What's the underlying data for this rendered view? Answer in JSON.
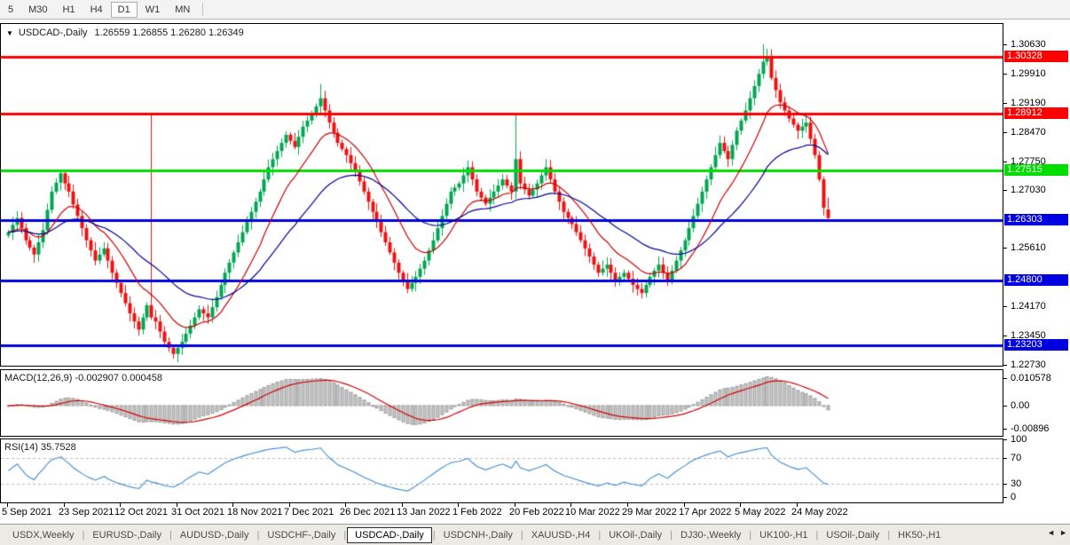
{
  "toolbar": {
    "timeframes": [
      "5",
      "M30",
      "H1",
      "H4",
      "D1",
      "W1",
      "MN"
    ],
    "active": "D1"
  },
  "chart": {
    "title": {
      "marker": "▼",
      "name": "USDCAD-,Daily",
      "ohlc": "1.26559 1.26855 1.26280 1.26349"
    }
  },
  "macd": {
    "label": "MACD(12,26,9)",
    "values": "-0.002907 0.000458"
  },
  "rsi": {
    "label": "RSI(14)",
    "value": "35.7528"
  },
  "tabs": {
    "items": [
      "USDX,Weekly",
      "EURUSD-,Daily",
      "AUDUSD-,Daily",
      "USDCHF-,Daily",
      "USDCAD-,Daily",
      "USDCNH-,Daily",
      "XAUUSD-,H4",
      "UKOil-,Daily",
      "DJ30-,Weekly",
      "UK100-,H1",
      "USOil-,Daily",
      "HK50-,H1"
    ],
    "active_index": 4,
    "scroll_left": "◄",
    "scroll_right": "►"
  },
  "colors": {
    "up_candle": "#00a651",
    "down_candle": "#ee1111",
    "ma_fast": "#cc0000",
    "ma_slow": "#000099",
    "hist_fill": "#c9c9c9",
    "hist_border": "#9b9b9b",
    "macd_signal": "#d40000",
    "rsi_line": "#3d8bd4",
    "level_dash": "#b9b9b9",
    "line_red": "#fe0000",
    "line_green": "#00dd00",
    "line_blue": "#0000e0"
  },
  "chart_data": {
    "type": "candlestick",
    "symbol": "USDCAD",
    "timeframe": "Daily",
    "last_bar": {
      "open": 1.26559,
      "high": 1.26855,
      "low": 1.2628,
      "close": 1.26349
    },
    "price_range": [
      1.2271,
      1.3113
    ],
    "y_ticks": [
      "1.30630",
      "1.29910",
      "1.29190",
      "1.28470",
      "1.27750",
      "1.27030",
      "1.25610",
      "1.24170",
      "1.23450",
      "1.22730"
    ],
    "hlines": [
      {
        "price": 1.30328,
        "label": "1.30328",
        "color": "#fe0000"
      },
      {
        "price": 1.28912,
        "label": "1.28912",
        "color": "#fe0000"
      },
      {
        "price": 1.27515,
        "label": "1.27515",
        "color": "#00dd00"
      },
      {
        "price": 1.26303,
        "label": "1.26303",
        "color": "#0000e0"
      },
      {
        "price": 1.248,
        "label": "1.24800",
        "color": "#0000e0"
      },
      {
        "price": 1.23203,
        "label": "1.23203",
        "color": "#0000e0"
      }
    ],
    "x_ticks": [
      {
        "label": "5 Sep 2021",
        "i": 0
      },
      {
        "label": "23 Sep 2021",
        "i": 13
      },
      {
        "label": "12 Oct 2021",
        "i": 26
      },
      {
        "label": "31 Oct 2021",
        "i": 39
      },
      {
        "label": "18 Nov 2021",
        "i": 52
      },
      {
        "label": "7 Dec 2021",
        "i": 65
      },
      {
        "label": "26 Dec 2021",
        "i": 78
      },
      {
        "label": "13 Jan 2022",
        "i": 91
      },
      {
        "label": "1 Feb 2022",
        "i": 104
      },
      {
        "label": "20 Feb 2022",
        "i": 117
      },
      {
        "label": "10 Mar 2022",
        "i": 130
      },
      {
        "label": "29 Mar 2022",
        "i": 143
      },
      {
        "label": "17 Apr 2022",
        "i": 156
      },
      {
        "label": "5 May 2022",
        "i": 169
      },
      {
        "label": "24 May 2022",
        "i": 182
      }
    ],
    "closes": [
      1.26,
      1.2618,
      1.2635,
      1.261,
      1.258,
      1.2562,
      1.2545,
      1.2575,
      1.2605,
      1.2655,
      1.27,
      1.2722,
      1.2745,
      1.272,
      1.27,
      1.2668,
      1.264,
      1.261,
      1.258,
      1.2555,
      1.253,
      1.2545,
      1.256,
      1.253,
      1.25,
      1.2475,
      1.245,
      1.2425,
      1.24,
      1.238,
      1.236,
      1.239,
      1.242,
      1.239,
      1.238,
      1.2355,
      1.233,
      1.2315,
      1.23,
      1.2315,
      1.233,
      1.235,
      1.237,
      1.239,
      1.241,
      1.24,
      1.239,
      1.2415,
      1.244,
      1.247,
      1.25,
      1.2525,
      1.255,
      1.2575,
      1.26,
      1.2625,
      1.265,
      1.2675,
      1.27,
      1.273,
      1.276,
      1.278,
      1.28,
      1.282,
      1.284,
      1.2825,
      1.281,
      1.2835,
      1.286,
      1.2875,
      1.289,
      1.291,
      1.293,
      1.29,
      1.287,
      1.2845,
      1.282,
      1.2805,
      1.279,
      1.277,
      1.275,
      1.2725,
      1.27,
      1.2675,
      1.265,
      1.2625,
      1.26,
      1.2575,
      1.255,
      1.2525,
      1.25,
      1.248,
      1.246,
      1.2475,
      1.249,
      1.251,
      1.253,
      1.2555,
      1.258,
      1.261,
      1.264,
      1.267,
      1.27,
      1.271,
      1.272,
      1.274,
      1.276,
      1.273,
      1.27,
      1.2685,
      1.267,
      1.2685,
      1.27,
      1.2715,
      1.273,
      1.2715,
      1.27,
      1.278,
      1.272,
      1.2705,
      1.269,
      1.2705,
      1.272,
      1.274,
      1.276,
      1.273,
      1.27,
      1.2675,
      1.265,
      1.2635,
      1.262,
      1.26,
      1.258,
      1.256,
      1.254,
      1.252,
      1.25,
      1.251,
      1.252,
      1.25,
      1.248,
      1.249,
      1.25,
      1.2485,
      1.247,
      1.246,
      1.245,
      1.247,
      1.249,
      1.2505,
      1.252,
      1.25,
      1.248,
      1.2505,
      1.253,
      1.2555,
      1.258,
      1.261,
      1.264,
      1.267,
      1.27,
      1.273,
      1.276,
      1.279,
      1.282,
      1.28,
      1.278,
      1.2815,
      1.285,
      1.2875,
      1.29,
      1.293,
      1.296,
      1.299,
      1.302,
      1.303,
      1.298,
      1.295,
      1.292,
      1.29,
      1.288,
      1.2865,
      1.285,
      1.286,
      1.287,
      1.283,
      1.279,
      1.273,
      1.266,
      1.26349
    ],
    "special_bars": {
      "33": {
        "h": 1.289
      },
      "38": {
        "l": 1.2288
      },
      "72": {
        "h": 1.2965
      },
      "117": {
        "h": 1.289
      },
      "174": {
        "h": 1.3063
      },
      "175": {
        "h": 1.3052
      },
      "189": {
        "o": 1.26559,
        "h": 1.26855,
        "l": 1.2628,
        "c": 1.26349
      }
    },
    "moving_averages": [
      {
        "period": 13,
        "color": "#cc0000"
      },
      {
        "period": 34,
        "color": "#000099"
      }
    ],
    "macd": {
      "fast": 12,
      "slow": 26,
      "signal": 9,
      "display": [
        -0.002907,
        0.000458
      ],
      "range": [
        -0.0115,
        0.0135
      ],
      "ticks": [
        {
          "label": "0.010578",
          "value": 0.010578
        },
        {
          "label": "0.00",
          "value": 0
        },
        {
          "label": "-0.00896",
          "value": -0.00896
        }
      ]
    },
    "rsi": {
      "period": 14,
      "display": 35.7528,
      "levels": [
        70,
        30
      ],
      "ticks": [
        {
          "label": "100",
          "value": 100
        },
        {
          "label": "70",
          "value": 70
        },
        {
          "label": "30",
          "value": 30
        },
        {
          "label": "0",
          "value": 0
        }
      ]
    }
  }
}
